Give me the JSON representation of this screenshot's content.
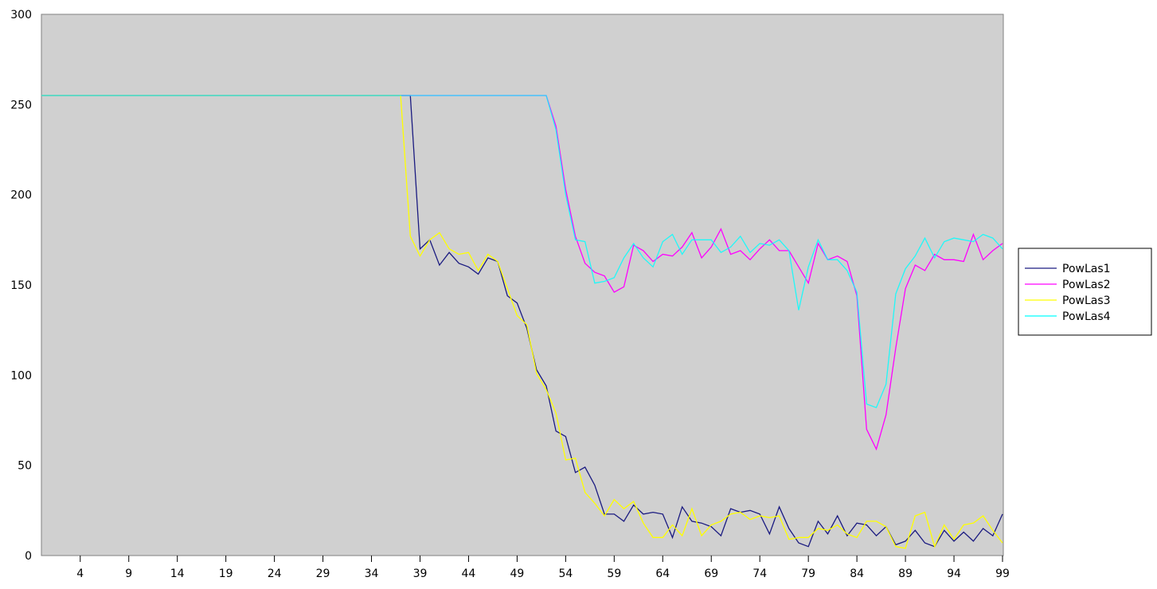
{
  "chart_data": {
    "type": "line",
    "title": "",
    "xlabel": "",
    "ylabel": "",
    "xlim": [
      0,
      99
    ],
    "ylim": [
      0,
      300
    ],
    "yticks": [
      0,
      50,
      100,
      150,
      200,
      250,
      300
    ],
    "xticks": [
      4,
      9,
      14,
      19,
      24,
      29,
      34,
      39,
      44,
      49,
      54,
      59,
      64,
      69,
      74,
      79,
      84,
      89,
      94,
      99
    ],
    "grid": false,
    "legend_position": "right",
    "plot_background": "#d0d0d0",
    "series": [
      {
        "name": "PowLas1",
        "color": "#1a1a80",
        "values": [
          255,
          255,
          255,
          255,
          255,
          255,
          255,
          255,
          255,
          255,
          255,
          255,
          255,
          255,
          255,
          255,
          255,
          255,
          255,
          255,
          255,
          255,
          255,
          255,
          255,
          255,
          255,
          255,
          255,
          255,
          255,
          255,
          255,
          255,
          255,
          255,
          255,
          255,
          255,
          170,
          175,
          161,
          168,
          162,
          160,
          156,
          165,
          163,
          144,
          140,
          126,
          103,
          94,
          69,
          66,
          46,
          49,
          39,
          23,
          23,
          19,
          28,
          23,
          24,
          23,
          10,
          27,
          19,
          18,
          16,
          11,
          26,
          24,
          25,
          23,
          12,
          27,
          15,
          7,
          5,
          19,
          12,
          22,
          11,
          18,
          17,
          11,
          16,
          6,
          8,
          14,
          7,
          5,
          14,
          8,
          13,
          8,
          15,
          11,
          23
        ]
      },
      {
        "name": "PowLas2",
        "color": "#ff00ff",
        "values": [
          255,
          255,
          255,
          255,
          255,
          255,
          255,
          255,
          255,
          255,
          255,
          255,
          255,
          255,
          255,
          255,
          255,
          255,
          255,
          255,
          255,
          255,
          255,
          255,
          255,
          255,
          255,
          255,
          255,
          255,
          255,
          255,
          255,
          255,
          255,
          255,
          255,
          255,
          255,
          255,
          255,
          255,
          255,
          255,
          255,
          255,
          255,
          255,
          255,
          255,
          255,
          255,
          255,
          238,
          203,
          177,
          162,
          157,
          155,
          146,
          149,
          172,
          169,
          163,
          167,
          166,
          171,
          179,
          165,
          171,
          181,
          167,
          169,
          164,
          170,
          175,
          169,
          169,
          160,
          151,
          173,
          164,
          166,
          163,
          144,
          70,
          59,
          78,
          115,
          148,
          161,
          158,
          167,
          164,
          164,
          163,
          178,
          164,
          169,
          173
        ]
      },
      {
        "name": "PowLas3",
        "color": "#ffff00",
        "values": [
          255,
          255,
          255,
          255,
          255,
          255,
          255,
          255,
          255,
          255,
          255,
          255,
          255,
          255,
          255,
          255,
          255,
          255,
          255,
          255,
          255,
          255,
          255,
          255,
          255,
          255,
          255,
          255,
          255,
          255,
          255,
          255,
          255,
          255,
          255,
          255,
          255,
          255,
          177,
          166,
          175,
          179,
          170,
          167,
          168,
          158,
          167,
          163,
          148,
          133,
          128,
          101,
          92,
          79,
          53,
          54,
          35,
          29,
          22,
          31,
          26,
          30,
          18,
          10,
          10,
          17,
          11,
          26,
          11,
          17,
          19,
          23,
          24,
          20,
          22,
          21,
          22,
          9,
          10,
          10,
          15,
          14,
          17,
          12,
          10,
          19,
          19,
          16,
          5,
          4,
          22,
          24,
          5,
          17,
          9,
          17,
          18,
          22,
          14,
          7
        ]
      },
      {
        "name": "PowLas4",
        "color": "#00ffff",
        "values": [
          255,
          255,
          255,
          255,
          255,
          255,
          255,
          255,
          255,
          255,
          255,
          255,
          255,
          255,
          255,
          255,
          255,
          255,
          255,
          255,
          255,
          255,
          255,
          255,
          255,
          255,
          255,
          255,
          255,
          255,
          255,
          255,
          255,
          255,
          255,
          255,
          255,
          255,
          255,
          255,
          255,
          255,
          255,
          255,
          255,
          255,
          255,
          255,
          255,
          255,
          255,
          255,
          255,
          236,
          200,
          175,
          174,
          151,
          152,
          154,
          165,
          173,
          165,
          160,
          174,
          178,
          167,
          175,
          175,
          175,
          168,
          171,
          177,
          168,
          173,
          172,
          175,
          169,
          136,
          160,
          175,
          164,
          164,
          158,
          146,
          84,
          82,
          95,
          145,
          159,
          166,
          176,
          165,
          174,
          176,
          175,
          174,
          178,
          176,
          170
        ]
      }
    ]
  }
}
